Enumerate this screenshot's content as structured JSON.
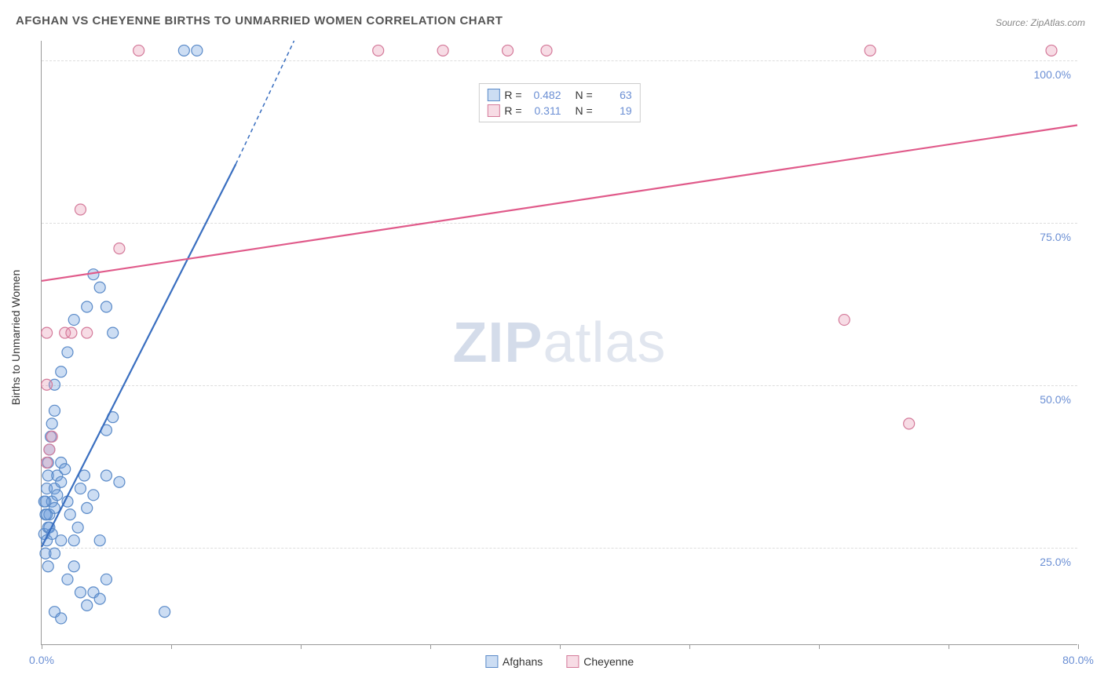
{
  "title": "AFGHAN VS CHEYENNE BIRTHS TO UNMARRIED WOMEN CORRELATION CHART",
  "source": "Source: ZipAtlas.com",
  "y_axis_label": "Births to Unmarried Women",
  "watermark": {
    "part1": "ZIP",
    "part2": "atlas"
  },
  "chart": {
    "type": "scatter",
    "xlim": [
      0,
      80
    ],
    "ylim": [
      10,
      103
    ],
    "x_ticks": [
      0,
      10,
      20,
      30,
      40,
      50,
      60,
      70,
      80
    ],
    "x_tick_labels": {
      "0": "0.0%",
      "80": "80.0%"
    },
    "y_ticks": [
      25,
      50,
      75,
      100
    ],
    "y_tick_labels": {
      "25": "25.0%",
      "50": "50.0%",
      "75": "75.0%",
      "100": "100.0%"
    },
    "grid_color": "#dddddd",
    "background_color": "#ffffff",
    "marker_radius": 7,
    "marker_stroke_width": 1.2,
    "series": [
      {
        "name": "Afghans",
        "color_fill": "rgba(108,157,220,0.35)",
        "color_stroke": "#5a8ac8",
        "line_color": "#3a6fc0",
        "line_width": 2.2,
        "R": "0.482",
        "N": "63",
        "trend": {
          "x1": 0,
          "y1": 25,
          "x2": 15,
          "y2": 84,
          "x2_ext": 19.5,
          "y2_ext": 103
        },
        "points": [
          [
            0.2,
            27
          ],
          [
            0.3,
            30
          ],
          [
            0.3,
            32
          ],
          [
            0.4,
            34
          ],
          [
            0.5,
            36
          ],
          [
            0.5,
            38
          ],
          [
            0.6,
            40
          ],
          [
            0.7,
            42
          ],
          [
            0.8,
            44
          ],
          [
            1.0,
            46
          ],
          [
            0.3,
            24
          ],
          [
            0.4,
            26
          ],
          [
            0.5,
            28
          ],
          [
            0.6,
            30
          ],
          [
            0.8,
            32
          ],
          [
            1.0,
            34
          ],
          [
            1.2,
            36
          ],
          [
            1.5,
            38
          ],
          [
            0.2,
            32
          ],
          [
            0.4,
            30
          ],
          [
            0.6,
            28
          ],
          [
            0.8,
            27
          ],
          [
            1.0,
            31
          ],
          [
            1.2,
            33
          ],
          [
            1.5,
            35
          ],
          [
            1.8,
            37
          ],
          [
            2.0,
            32
          ],
          [
            2.2,
            30
          ],
          [
            2.5,
            26
          ],
          [
            2.8,
            28
          ],
          [
            3.0,
            34
          ],
          [
            3.3,
            36
          ],
          [
            3.5,
            31
          ],
          [
            4.0,
            33
          ],
          [
            4.5,
            26
          ],
          [
            5.0,
            36
          ],
          [
            5.5,
            45
          ],
          [
            6.0,
            35
          ],
          [
            0.5,
            22
          ],
          [
            1.0,
            24
          ],
          [
            1.5,
            26
          ],
          [
            2.0,
            20
          ],
          [
            2.5,
            22
          ],
          [
            3.0,
            18
          ],
          [
            3.5,
            16
          ],
          [
            4.0,
            18
          ],
          [
            4.5,
            17
          ],
          [
            5.0,
            20
          ],
          [
            1.0,
            15
          ],
          [
            1.5,
            14
          ],
          [
            1.0,
            50
          ],
          [
            1.5,
            52
          ],
          [
            2.0,
            55
          ],
          [
            2.5,
            60
          ],
          [
            3.5,
            62
          ],
          [
            4.0,
            67
          ],
          [
            4.5,
            65
          ],
          [
            5.0,
            62
          ],
          [
            5.5,
            58
          ],
          [
            5.0,
            43
          ],
          [
            9.5,
            15
          ],
          [
            11,
            101.5
          ],
          [
            12,
            101.5
          ]
        ]
      },
      {
        "name": "Cheyenne",
        "color_fill": "rgba(230,140,170,0.30)",
        "color_stroke": "#d47a9a",
        "line_color": "#e05a8a",
        "line_width": 2.2,
        "R": "0.311",
        "N": "19",
        "trend": {
          "x1": 0,
          "y1": 66,
          "x2": 80,
          "y2": 90
        },
        "points": [
          [
            0.4,
            38
          ],
          [
            0.6,
            40
          ],
          [
            0.8,
            42
          ],
          [
            0.4,
            50
          ],
          [
            1.8,
            58
          ],
          [
            2.3,
            58
          ],
          [
            3.5,
            58
          ],
          [
            0.4,
            58
          ],
          [
            3.0,
            77
          ],
          [
            6.0,
            71
          ],
          [
            7.5,
            101.5
          ],
          [
            26,
            101.5
          ],
          [
            31,
            101.5
          ],
          [
            36,
            101.5
          ],
          [
            39,
            101.5
          ],
          [
            64,
            101.5
          ],
          [
            78,
            101.5
          ],
          [
            67,
            44
          ],
          [
            62,
            60
          ]
        ]
      }
    ]
  },
  "legend_top": [
    {
      "swatch_fill": "rgba(108,157,220,0.35)",
      "swatch_stroke": "#5a8ac8",
      "r_label": "R =",
      "r_val": "0.482",
      "n_label": "N =",
      "n_val": "63"
    },
    {
      "swatch_fill": "rgba(230,140,170,0.30)",
      "swatch_stroke": "#d47a9a",
      "r_label": "R =",
      "r_val": "0.311",
      "n_label": "N =",
      "n_val": "19"
    }
  ],
  "legend_bottom": [
    {
      "swatch_fill": "rgba(108,157,220,0.35)",
      "swatch_stroke": "#5a8ac8",
      "label": "Afghans"
    },
    {
      "swatch_fill": "rgba(230,140,170,0.30)",
      "swatch_stroke": "#d47a9a",
      "label": "Cheyenne"
    }
  ]
}
